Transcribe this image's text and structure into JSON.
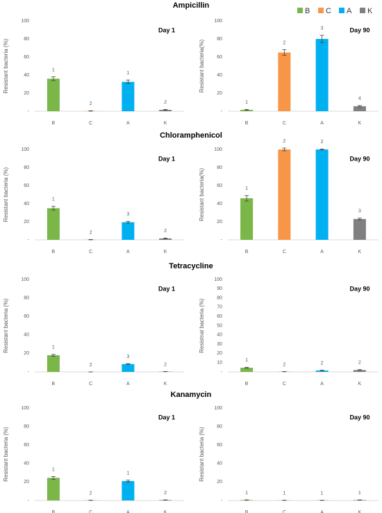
{
  "chart_data": [
    {
      "type": "bar",
      "title": "Ampicillin",
      "day": "Day 1",
      "ylabel": "Resistant bacteria (%)",
      "categories": [
        "B",
        "C",
        "A",
        "K"
      ],
      "values": [
        36,
        0.3,
        32.5,
        1.5
      ],
      "errors": [
        2,
        0.2,
        2,
        0.5
      ],
      "annotations": [
        "1",
        "2",
        "1",
        "2"
      ],
      "colors": [
        "#7ab648",
        "#f79646",
        "#00b0f0",
        "#808080"
      ],
      "ylim": [
        0,
        100
      ],
      "yticks": [
        {
          "value": 0,
          "label": "-"
        },
        20,
        40,
        60,
        80,
        100
      ]
    },
    {
      "type": "bar",
      "day": "Day 90",
      "ylabel": "Resistant bacteria(%)",
      "legend": "upper right",
      "categories": [
        "B",
        "C",
        "A",
        "K"
      ],
      "values": [
        1.5,
        65,
        80,
        5.5
      ],
      "errors": [
        0.5,
        3,
        4,
        0.8
      ],
      "annotations": [
        "1",
        "2",
        "3",
        "4"
      ],
      "colors": [
        "#7ab648",
        "#f79646",
        "#00b0f0",
        "#808080"
      ],
      "ylim": [
        0,
        100
      ],
      "yticks": [
        {
          "value": 0,
          "label": "-"
        },
        20,
        40,
        60,
        80,
        100
      ]
    },
    {
      "type": "bar",
      "title": "Chloramphenicol",
      "day": "Day 1",
      "ylabel": "Resistant bacteria (%)",
      "categories": [
        "B",
        "C",
        "A",
        "K"
      ],
      "values": [
        35,
        0.2,
        19.5,
        1.5
      ],
      "errors": [
        2,
        0.2,
        1,
        0.5
      ],
      "annotations": [
        "1",
        "2",
        "3",
        "2"
      ],
      "colors": [
        "#7ab648",
        "#f79646",
        "#00b0f0",
        "#808080"
      ],
      "ylim": [
        0,
        100
      ],
      "yticks": [
        {
          "value": 0,
          "label": "-"
        },
        20,
        40,
        60,
        80,
        100
      ]
    },
    {
      "type": "bar",
      "day": "Day 90",
      "ylabel": "Resistant bacteria(%)",
      "categories": [
        "B",
        "C",
        "A",
        "K"
      ],
      "values": [
        46,
        100,
        100,
        23
      ],
      "errors": [
        3,
        1.5,
        0.5,
        1
      ],
      "annotations": [
        "1",
        "2",
        "2",
        "3"
      ],
      "colors": [
        "#7ab648",
        "#f79646",
        "#00b0f0",
        "#808080"
      ],
      "ylim": [
        0,
        100
      ],
      "yticks": [
        {
          "value": 0,
          "label": "-"
        },
        20,
        40,
        60,
        80,
        100
      ]
    },
    {
      "type": "bar",
      "title": "Tetracycline",
      "day": "Day 1",
      "ylabel": "Resistant bacteria (%)",
      "categories": [
        "B",
        "C",
        "A",
        "K"
      ],
      "values": [
        18,
        0,
        8.5,
        0.3
      ],
      "errors": [
        1,
        0,
        0.5,
        0.1
      ],
      "annotations": [
        "1",
        "2",
        "3",
        "2"
      ],
      "colors": [
        "#7ab648",
        "#f79646",
        "#00b0f0",
        "#808080"
      ],
      "ylim": [
        0,
        100
      ],
      "yticks": [
        {
          "value": 0,
          "label": "-"
        },
        20,
        40,
        60,
        80,
        100
      ]
    },
    {
      "type": "bar",
      "day": "Day 90",
      "ylabel": "Resistnat bacteria (%)",
      "categories": [
        "B",
        "C",
        "A",
        "K"
      ],
      "values": [
        4.5,
        0.3,
        1.5,
        2
      ],
      "errors": [
        0.5,
        0.1,
        0.3,
        0.5
      ],
      "annotations": [
        "1",
        "2",
        "2",
        "2"
      ],
      "colors": [
        "#7ab648",
        "#f79646",
        "#00b0f0",
        "#808080"
      ],
      "ylim": [
        0,
        100
      ],
      "yticks": [
        {
          "value": 0,
          "label": "-"
        },
        10,
        20,
        30,
        40,
        50,
        60,
        70,
        80,
        90,
        100
      ]
    },
    {
      "type": "bar",
      "title": "Kanamycin",
      "day": "Day 1",
      "ylabel": "Resistant bacteria (%)",
      "categories": [
        "B",
        "C",
        "A",
        "K"
      ],
      "values": [
        24.5,
        0.3,
        21,
        0.5
      ],
      "errors": [
        1.5,
        0.1,
        1,
        0.2
      ],
      "annotations": [
        "1",
        "2",
        "1",
        "2"
      ],
      "colors": [
        "#7ab648",
        "#f79646",
        "#00b0f0",
        "#808080"
      ],
      "ylim": [
        0,
        100
      ],
      "yticks": [
        {
          "value": 0,
          "label": "-"
        },
        20,
        40,
        60,
        80,
        100
      ]
    },
    {
      "type": "bar",
      "day": "Day 90",
      "ylabel": "Resistant bacteria (%)",
      "categories": [
        "B",
        "C",
        "A",
        "K"
      ],
      "values": [
        0.5,
        0.2,
        0.2,
        0.5
      ],
      "errors": [
        0.2,
        0.1,
        0.1,
        0.2
      ],
      "annotations": [
        "1",
        "1",
        "1",
        "1"
      ],
      "colors": [
        "#7ab648",
        "#f79646",
        "#00b0f0",
        "#808080"
      ],
      "ylim": [
        0,
        100
      ],
      "yticks": [
        {
          "value": 0,
          "label": "-"
        },
        20,
        40,
        60,
        80,
        100
      ]
    }
  ]
}
